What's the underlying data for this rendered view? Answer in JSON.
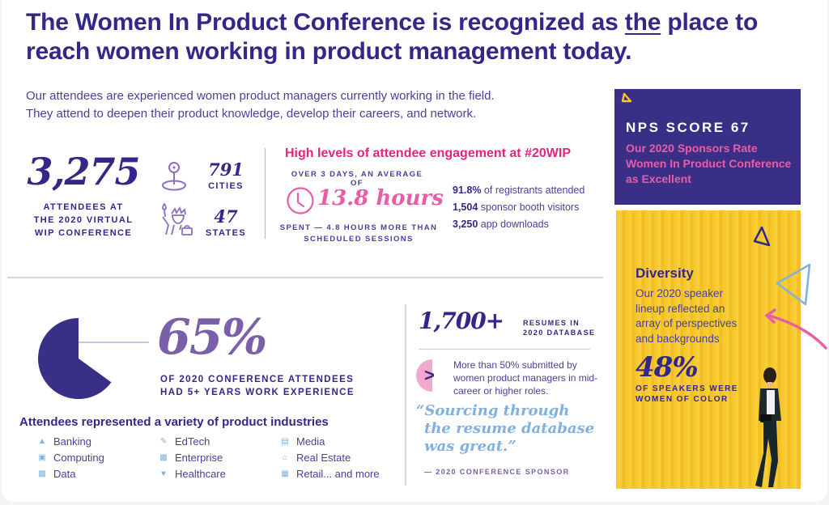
{
  "header": {
    "title_part1": "The Women In Product Conference is recognized as ",
    "title_emph": "the",
    "title_part2": " place to reach women working in product management today."
  },
  "intro": {
    "line1": "Our attendees are experienced women product managers currently working in the field.",
    "line2": "They attend to deepen their product knowledge, develop their careers, and network."
  },
  "attendance": {
    "count": "3,275",
    "label_line1": "ATTENDEES AT",
    "label_line2": "THE 2020 VIRTUAL",
    "label_line3": "WIP CONFERENCE",
    "cities_value": "791",
    "cities_label": "CITIES",
    "cities_icon": "map-pin-icon",
    "states_value": "47",
    "states_label": "STATES",
    "states_icon": "statue-of-liberty-icon"
  },
  "engagement": {
    "title": "High levels of attendee engagement at #20WIP",
    "over_label": "OVER 3 DAYS, AN AVERAGE OF",
    "hours": "13.8 hours",
    "hours_icon": "clock-icon",
    "spent_line1": "SPENT — 4.8 HOURS MORE THAN",
    "spent_line2": "SCHEDULED SESSIONS",
    "stats": [
      {
        "value": "91.8%",
        "label": " of registrants attended"
      },
      {
        "value": "1,504",
        "label": " sponsor booth visitors"
      },
      {
        "value": "3,250",
        "label": " app downloads"
      }
    ]
  },
  "experience": {
    "percent": "65%",
    "fraction": 0.65,
    "label_line1": "OF 2020 CONFERENCE ATTENDEES",
    "label_line2": "HAD 5+ YEARS WORK EXPERIENCE"
  },
  "industries": {
    "title": "Attendees represented a variety of product industries",
    "items": [
      {
        "label": "Banking",
        "icon": "bank-icon"
      },
      {
        "label": "EdTech",
        "icon": "pencil-icon"
      },
      {
        "label": "Media",
        "icon": "media-icon"
      },
      {
        "label": "Computing",
        "icon": "monitor-icon"
      },
      {
        "label": "Enterprise",
        "icon": "building-icon"
      },
      {
        "label": "Real Estate",
        "icon": "house-icon"
      },
      {
        "label": "Data",
        "icon": "bar-chart-icon"
      },
      {
        "label": "Healthcare",
        "icon": "heart-icon"
      },
      {
        "label": "Retail... and more",
        "icon": "shop-icon"
      }
    ]
  },
  "resumes": {
    "count": "1,700+",
    "label_line1": "RESUMES IN",
    "label_line2": "2020 DATABASE",
    "detail": "More than 50% submitted by women product managers in mid-career or higher roles.",
    "chevron": ">",
    "quote_line1": "“Sourcing through",
    "quote_line2": "the resume database",
    "quote_line3": "was great.”",
    "quote_by": "— 2020 CONFERENCE SPONSOR"
  },
  "nps": {
    "title": "NPS SCORE 67",
    "subtitle": "Our 2020 Sponsors Rate Women In Product Conference as Excellent"
  },
  "diversity": {
    "title": "Diversity",
    "text": "Our 2020 speaker lineup reflected an array of perspectives and backgrounds",
    "percent": "48%",
    "label_line1": "OF SPEAKERS WERE",
    "label_line2": "WOMEN OF COLOR"
  },
  "colors": {
    "navy": "#33278a",
    "pink": "#e4247e",
    "purple": "#7c5fa9",
    "yellow": "#f7c62a",
    "light_blue": "#7fb0e0"
  }
}
